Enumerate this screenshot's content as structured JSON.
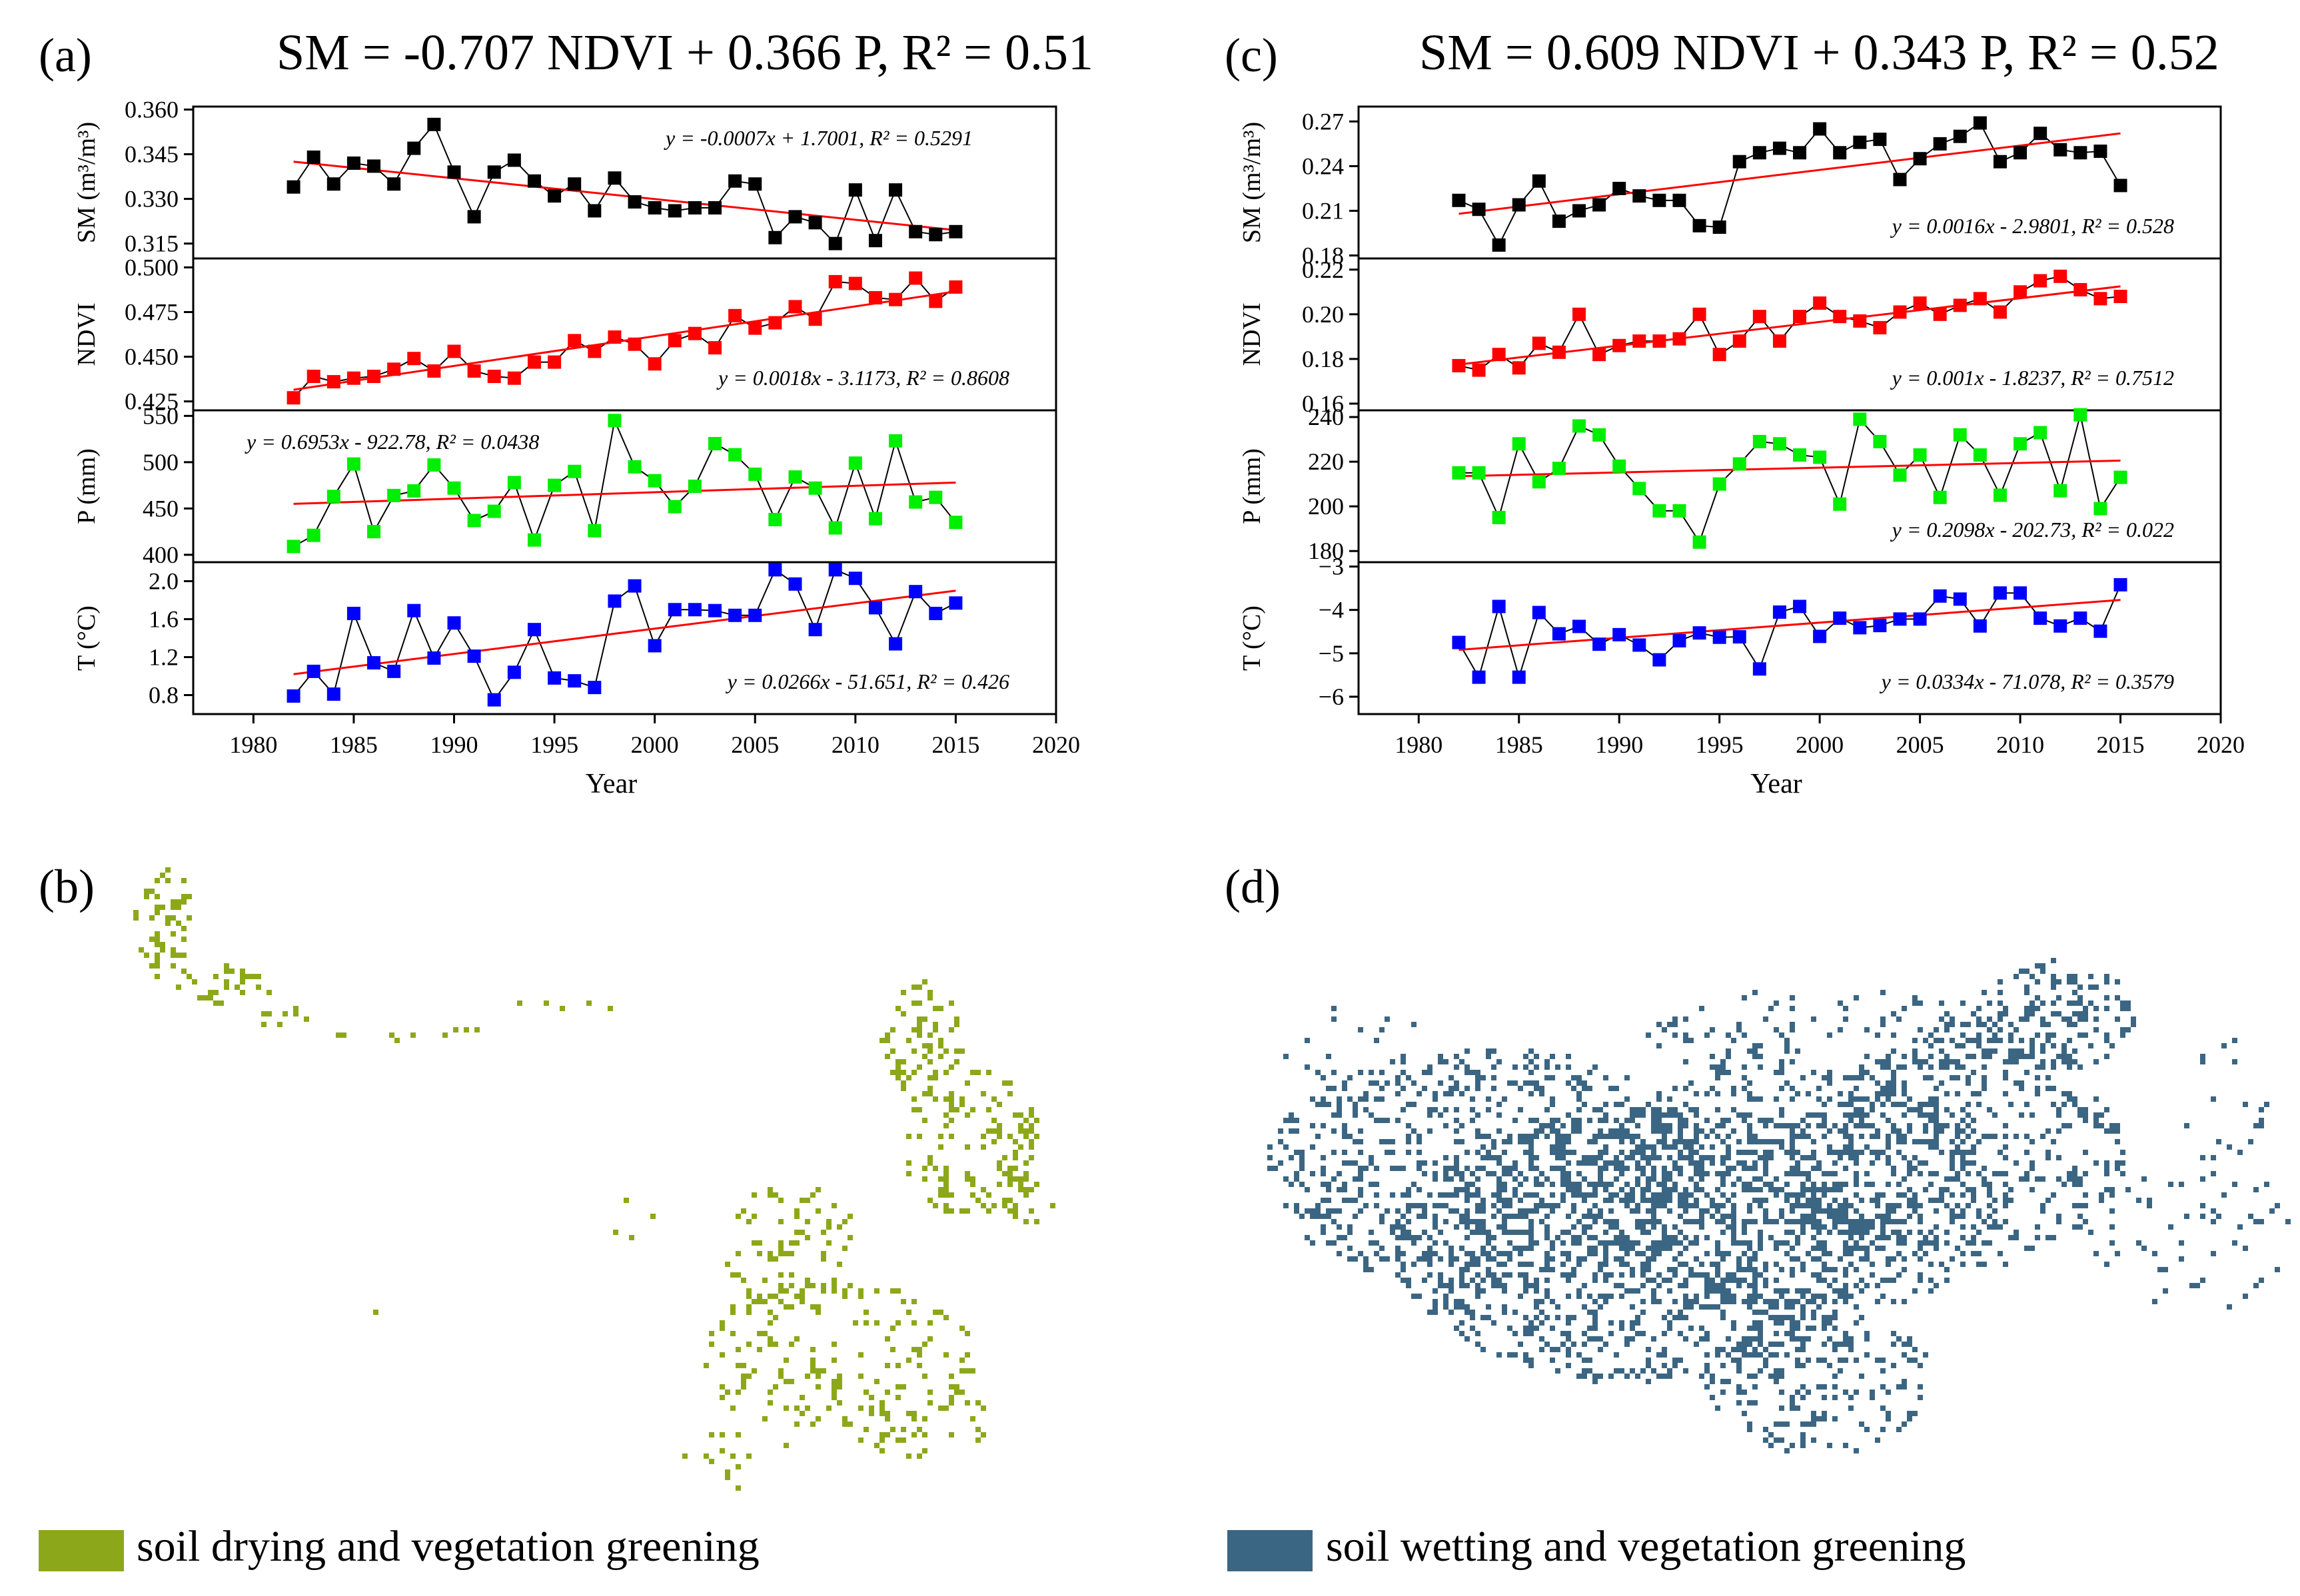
{
  "panels": {
    "a": {
      "letter": "(a)",
      "title": "SM = -0.707 NDVI + 0.366 P, R² = 0.51"
    },
    "b": {
      "letter": "(b)",
      "legend_label": "soil drying and vegetation greening",
      "color": "#8CA81A"
    },
    "c": {
      "letter": "(c)",
      "title": "SM = 0.609 NDVI + 0.343 P, R² = 0.52"
    },
    "d": {
      "letter": "(d)",
      "legend_label": "soil wetting and vegetation greening",
      "color": "#3B6683"
    }
  },
  "chart_data": [
    {
      "id": "a",
      "type": "line",
      "xlabel": "Year",
      "xlim": [
        1977,
        2020
      ],
      "xticks": [
        1980,
        1985,
        1990,
        1995,
        2000,
        2005,
        2010,
        2015,
        2020
      ],
      "x": [
        1982,
        1983,
        1984,
        1985,
        1986,
        1987,
        1988,
        1989,
        1990,
        1991,
        1992,
        1993,
        1994,
        1995,
        1996,
        1997,
        1998,
        1999,
        2000,
        2001,
        2002,
        2003,
        2004,
        2005,
        2006,
        2007,
        2008,
        2009,
        2010,
        2011,
        2012,
        2013,
        2014,
        2015
      ],
      "series": [
        {
          "name": "SM",
          "ylabel": "SM (m³/m³)",
          "color": "#000000",
          "ylim": [
            0.31,
            0.361
          ],
          "yticks": [
            0.315,
            0.33,
            0.345,
            0.36
          ],
          "ytick_labels": [
            "0.315",
            "0.330",
            "0.345",
            "0.360"
          ],
          "values": [
            0.334,
            0.344,
            0.335,
            0.342,
            0.341,
            0.335,
            0.347,
            0.355,
            0.339,
            0.324,
            0.339,
            0.343,
            0.336,
            0.331,
            0.335,
            0.326,
            0.337,
            0.329,
            0.327,
            0.326,
            0.327,
            0.327,
            0.336,
            0.335,
            0.317,
            0.324,
            0.322,
            0.315,
            0.333,
            0.316,
            0.333,
            0.319,
            0.318,
            0.319
          ],
          "trend": [
            0.3425,
            0.3195
          ],
          "equation": "y = -0.0007x + 1.7001, R² = 0.5291",
          "eq_pos": "top-right"
        },
        {
          "name": "NDVI",
          "ylabel": "NDVI",
          "color": "#FF0000",
          "ylim": [
            0.42,
            0.505
          ],
          "yticks": [
            0.425,
            0.45,
            0.475,
            0.5
          ],
          "ytick_labels": [
            "0.425",
            "0.450",
            "0.475",
            "0.500"
          ],
          "values": [
            0.427,
            0.439,
            0.436,
            0.438,
            0.439,
            0.443,
            0.449,
            0.442,
            0.453,
            0.442,
            0.439,
            0.438,
            0.447,
            0.447,
            0.459,
            0.453,
            0.461,
            0.457,
            0.446,
            0.459,
            0.463,
            0.455,
            0.473,
            0.466,
            0.469,
            0.478,
            0.471,
            0.492,
            0.491,
            0.483,
            0.482,
            0.494,
            0.481,
            0.489
          ],
          "trend": [
            0.4315,
            0.4865
          ],
          "equation": "y = 0.0018x - 3.1173, R² = 0.8608",
          "eq_pos": "bottom-right"
        },
        {
          "name": "P",
          "ylabel": "P (mm)",
          "color": "#00EE00",
          "ylim": [
            392,
            556
          ],
          "yticks": [
            400,
            450,
            500,
            550
          ],
          "ytick_labels": [
            "400",
            "450",
            "500",
            "550"
          ],
          "values": [
            409,
            421,
            463,
            498,
            425,
            464,
            469,
            497,
            472,
            437,
            447,
            478,
            416,
            475,
            490,
            426,
            545,
            495,
            480,
            452,
            474,
            520,
            508,
            487,
            438,
            484,
            472,
            429,
            499,
            439,
            523,
            457,
            462,
            435
          ],
          "trend": [
            455,
            478
          ],
          "equation": "y = 0.6953x - 922.78, R² = 0.0438",
          "eq_pos": "top-left"
        },
        {
          "name": "T",
          "ylabel": "T (°C)",
          "color": "#0000FF",
          "ylim": [
            0.6,
            2.2
          ],
          "yticks": [
            0.8,
            1.2,
            1.6,
            2.0
          ],
          "ytick_labels": [
            "0.8",
            "1.2",
            "1.6",
            "2.0"
          ],
          "values": [
            0.79,
            1.05,
            0.81,
            1.66,
            1.14,
            1.05,
            1.69,
            1.19,
            1.56,
            1.21,
            0.75,
            1.04,
            1.49,
            0.98,
            0.95,
            0.88,
            1.79,
            1.95,
            1.32,
            1.7,
            1.7,
            1.69,
            1.64,
            1.64,
            2.12,
            1.97,
            1.49,
            2.12,
            2.03,
            1.72,
            1.34,
            1.89,
            1.66,
            1.77
          ],
          "trend": [
            1.02,
            1.9
          ],
          "equation": "y = 0.0266x - 51.651, R² = 0.426",
          "eq_pos": "bottom-right"
        }
      ]
    },
    {
      "id": "c",
      "type": "line",
      "xlabel": "Year",
      "xlim": [
        1977,
        2020
      ],
      "xticks": [
        1980,
        1985,
        1990,
        1995,
        2000,
        2005,
        2010,
        2015,
        2020
      ],
      "x": [
        1982,
        1983,
        1984,
        1985,
        1986,
        1987,
        1988,
        1989,
        1990,
        1991,
        1992,
        1993,
        1994,
        1995,
        1996,
        1997,
        1998,
        1999,
        2000,
        2001,
        2002,
        2003,
        2004,
        2005,
        2006,
        2007,
        2008,
        2009,
        2010,
        2011,
        2012,
        2013,
        2014,
        2015
      ],
      "series": [
        {
          "name": "SM",
          "ylabel": "SM (m³/m³)",
          "color": "#000000",
          "ylim": [
            0.178,
            0.28
          ],
          "yticks": [
            0.18,
            0.21,
            0.24,
            0.27
          ],
          "ytick_labels": [
            "0.18",
            "0.21",
            "0.24",
            "0.27"
          ],
          "values": [
            0.217,
            0.211,
            0.187,
            0.214,
            0.23,
            0.203,
            0.21,
            0.214,
            0.225,
            0.22,
            0.217,
            0.217,
            0.2,
            0.199,
            0.243,
            0.249,
            0.252,
            0.249,
            0.265,
            0.249,
            0.256,
            0.258,
            0.231,
            0.245,
            0.255,
            0.26,
            0.269,
            0.243,
            0.249,
            0.262,
            0.251,
            0.249,
            0.25,
            0.227
          ],
          "trend": [
            0.208,
            0.262
          ],
          "equation": "y = 0.0016x - 2.9801, R² = 0.528",
          "eq_pos": "bottom-right"
        },
        {
          "name": "NDVI",
          "ylabel": "NDVI",
          "color": "#FF0000",
          "ylim": [
            0.157,
            0.225
          ],
          "yticks": [
            0.16,
            0.18,
            0.2,
            0.22
          ],
          "ytick_labels": [
            "0.16",
            "0.18",
            "0.20",
            "0.22"
          ],
          "values": [
            0.177,
            0.175,
            0.182,
            0.176,
            0.187,
            0.183,
            0.2,
            0.182,
            0.186,
            0.188,
            0.188,
            0.189,
            0.2,
            0.182,
            0.188,
            0.199,
            0.188,
            0.199,
            0.205,
            0.199,
            0.197,
            0.194,
            0.201,
            0.205,
            0.2,
            0.204,
            0.207,
            0.201,
            0.21,
            0.215,
            0.217,
            0.211,
            0.207,
            0.208
          ],
          "trend": [
            0.1775,
            0.2125
          ],
          "equation": "y = 0.001x - 1.8237, R² = 0.7512",
          "eq_pos": "bottom-right"
        },
        {
          "name": "P",
          "ylabel": "P (mm)",
          "color": "#00EE00",
          "ylim": [
            175,
            243
          ],
          "yticks": [
            180,
            200,
            220,
            240
          ],
          "ytick_labels": [
            "180",
            "200",
            "220",
            "240"
          ],
          "values": [
            215,
            215,
            195,
            228,
            211,
            217,
            236,
            232,
            218,
            208,
            198,
            198,
            184,
            210,
            219,
            229,
            228,
            223,
            222,
            201,
            239,
            229,
            214,
            223,
            204,
            232,
            223,
            205,
            228,
            233,
            207,
            241,
            199,
            213
          ],
          "trend": [
            213.5,
            220.5
          ],
          "equation": "y = 0.2098x - 202.73, R² = 0.022",
          "eq_pos": "bottom-right"
        },
        {
          "name": "T",
          "ylabel": "T (°C)",
          "color": "#0000FF",
          "ylim": [
            -6.4,
            -2.9
          ],
          "yticks": [
            -6,
            -5,
            -4,
            -3
          ],
          "ytick_labels": [
            "−6",
            "−5",
            "−4",
            "−3"
          ],
          "values": [
            -4.75,
            -5.55,
            -3.92,
            -5.55,
            -4.06,
            -4.55,
            -4.38,
            -4.79,
            -4.57,
            -4.81,
            -5.15,
            -4.71,
            -4.53,
            -4.63,
            -4.62,
            -5.36,
            -4.05,
            -3.92,
            -4.61,
            -4.19,
            -4.41,
            -4.36,
            -4.21,
            -4.21,
            -3.68,
            -3.75,
            -4.37,
            -3.61,
            -3.61,
            -4.19,
            -4.37,
            -4.19,
            -4.49,
            -3.42
          ],
          "trend": [
            -4.92,
            -3.77
          ],
          "equation": "y = 0.0334x - 71.078, R² = 0.3579",
          "eq_pos": "bottom-right"
        }
      ]
    }
  ]
}
